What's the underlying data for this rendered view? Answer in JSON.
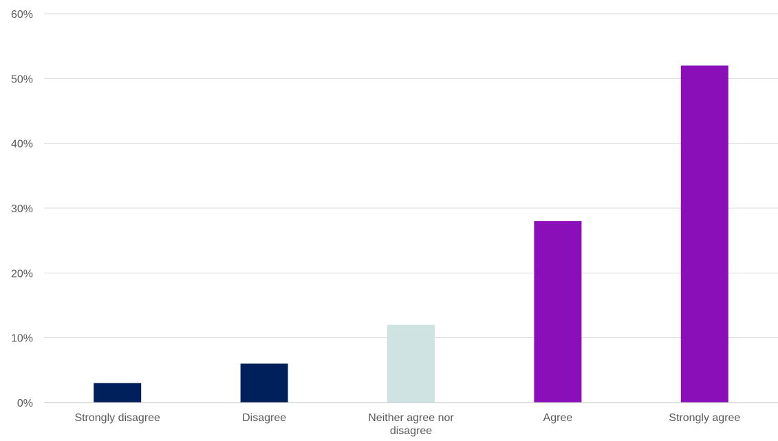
{
  "chart_data": {
    "type": "bar",
    "title": "",
    "xlabel": "",
    "ylabel": "",
    "categories": [
      "Strongly disagree",
      "Disagree",
      "Neither agree nor disagree",
      "Agree",
      "Strongly agree"
    ],
    "category_label_lines": [
      [
        "Strongly disagree"
      ],
      [
        "Disagree"
      ],
      [
        "Neither agree nor",
        "disagree"
      ],
      [
        "Agree"
      ],
      [
        "Strongly agree"
      ]
    ],
    "series": [
      {
        "values": [
          0.03,
          0.06,
          0.12,
          0.28,
          0.52
        ],
        "colors": [
          "#00205b",
          "#00205b",
          "#d0e3e3",
          "#8a0fb8",
          "#8a0fb8"
        ]
      }
    ],
    "ylim": [
      0,
      0.6
    ],
    "yticks": [
      0,
      0.1,
      0.2,
      0.3,
      0.4,
      0.5,
      0.6
    ],
    "ytick_labels": [
      "0%",
      "10%",
      "20%",
      "30%",
      "40%",
      "50%",
      "60%"
    ],
    "grid": true,
    "legend": "none"
  }
}
